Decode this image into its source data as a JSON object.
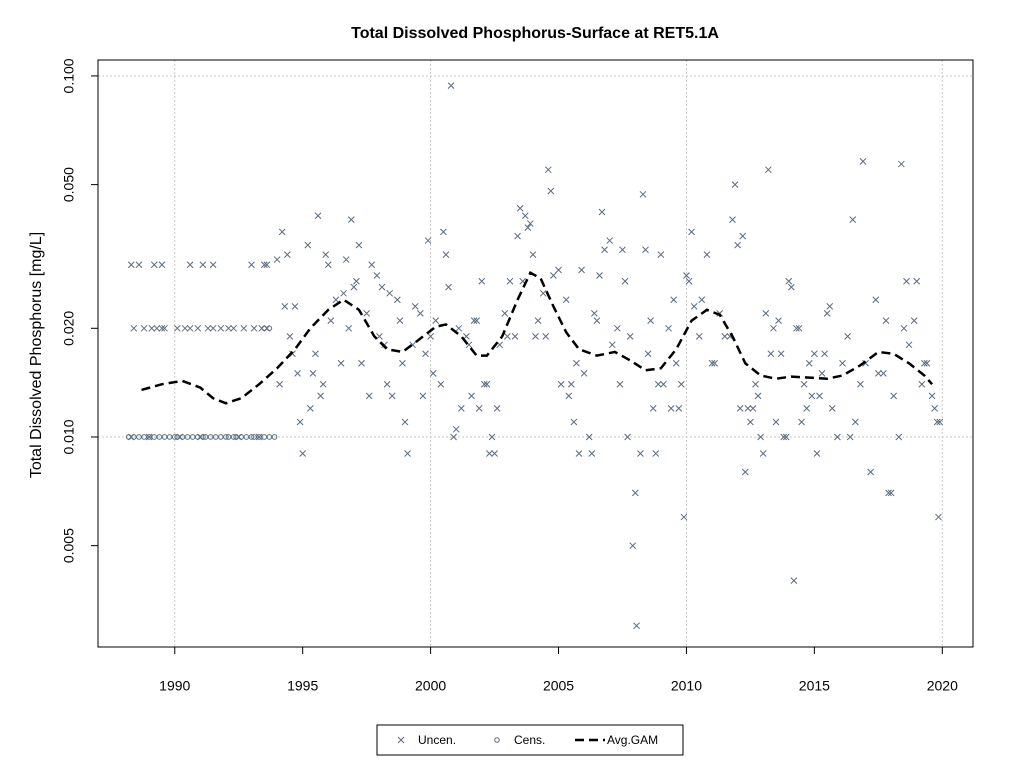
{
  "chart_data": {
    "type": "scatter",
    "title": "Total Dissolved Phosphorus-Surface at RET5.1A",
    "y_label": "Total Dissolved Phosphorus [mg/L]",
    "log_y": true,
    "xlim": [
      1987,
      2021.2
    ],
    "ylim": [
      0.00262,
      0.1107
    ],
    "xticks": [
      1990,
      1995,
      2000,
      2005,
      2010,
      2015,
      2020
    ],
    "yticks": [
      {
        "value": 0.1,
        "label": "0.100"
      },
      {
        "value": 0.05,
        "label": "0.050"
      },
      {
        "value": 0.02,
        "label": "0.020"
      },
      {
        "value": 0.01,
        "label": "0.010"
      },
      0.005
    ],
    "x_grid": [
      1990,
      2000,
      2010,
      2020
    ],
    "y_grid": [
      0.01,
      0.1
    ],
    "legend": "bottom",
    "series": [
      {
        "name": "Uncen.",
        "marker": "cross",
        "color": "#5b6b82",
        "x": [
          1988.3,
          1988.6,
          1989.2,
          1989.5,
          1990.6,
          1991.1,
          1991.5,
          1993.0,
          1993.5,
          1993.6,
          1988.4,
          1988.8,
          1989.1,
          1989.3,
          1989.5,
          1989.6,
          1990.1,
          1990.4,
          1990.6,
          1990.9,
          1991.3,
          1991.5,
          1991.8,
          1992.1,
          1992.3,
          1992.7,
          1993.1,
          1993.4,
          1993.6,
          1988.3,
          1989.0,
          1990.2,
          1991.0,
          1992.5,
          1993.3,
          1994.0,
          1994.1,
          1994.2,
          1994.3,
          1994.4,
          1994.5,
          1994.6,
          1994.7,
          1994.8,
          1994.9,
          1995.0,
          1995.2,
          1995.3,
          1995.4,
          1995.5,
          1995.6,
          1995.7,
          1995.8,
          1995.9,
          1996.0,
          1996.1,
          1996.3,
          1996.5,
          1996.6,
          1996.7,
          1996.8,
          1996.9,
          1997.0,
          1997.1,
          1997.2,
          1997.3,
          1997.5,
          1997.6,
          1997.7,
          1997.9,
          1998.0,
          1998.1,
          1998.2,
          1998.3,
          1998.4,
          1998.5,
          1998.7,
          1998.8,
          1998.9,
          1999.0,
          1999.1,
          1999.3,
          1999.4,
          1999.6,
          1999.7,
          1999.8,
          1999.9,
          2000.0,
          2000.1,
          2000.2,
          2000.4,
          2000.5,
          2000.6,
          2000.7,
          2000.8,
          2000.9,
          2001.0,
          2001.1,
          2001.2,
          2001.4,
          2001.5,
          2001.6,
          2001.7,
          2001.8,
          2001.9,
          2002.0,
          2002.1,
          2002.2,
          2002.3,
          2002.4,
          2002.5,
          2002.6,
          2002.7,
          2002.9,
          2003.0,
          2003.1,
          2003.3,
          2003.4,
          2003.5,
          2003.6,
          2003.7,
          2003.8,
          2003.9,
          2004.0,
          2004.1,
          2004.2,
          2004.4,
          2004.5,
          2004.6,
          2004.7,
          2004.8,
          2005.0,
          2005.1,
          2005.3,
          2005.4,
          2005.5,
          2005.6,
          2005.7,
          2005.8,
          2005.9,
          2006.0,
          2006.2,
          2006.3,
          2006.4,
          2006.5,
          2006.6,
          2006.7,
          2006.8,
          2007.0,
          2007.1,
          2007.3,
          2007.4,
          2007.5,
          2007.6,
          2007.7,
          2007.8,
          2007.9,
          2008.0,
          2008.05,
          2008.2,
          2008.3,
          2008.4,
          2008.5,
          2008.6,
          2008.7,
          2008.8,
          2008.9,
          2009.0,
          2009.1,
          2009.3,
          2009.4,
          2009.5,
          2009.6,
          2009.7,
          2009.8,
          2009.9,
          2010.0,
          2010.1,
          2010.2,
          2010.3,
          2010.5,
          2010.6,
          2010.8,
          2011.0,
          2011.1,
          2011.3,
          2011.5,
          2011.7,
          2011.8,
          2011.9,
          2012.0,
          2012.1,
          2012.2,
          2012.3,
          2012.4,
          2012.5,
          2012.6,
          2012.7,
          2012.8,
          2012.9,
          2013.0,
          2013.1,
          2013.2,
          2013.3,
          2013.4,
          2013.5,
          2013.6,
          2013.7,
          2013.8,
          2013.9,
          2014.0,
          2014.1,
          2014.2,
          2014.3,
          2014.4,
          2014.5,
          2014.6,
          2014.7,
          2014.8,
          2014.9,
          2015.0,
          2015.1,
          2015.2,
          2015.3,
          2015.4,
          2015.5,
          2015.6,
          2015.7,
          2015.9,
          2016.1,
          2016.3,
          2016.4,
          2016.5,
          2016.6,
          2016.8,
          2016.9,
          2017.0,
          2017.2,
          2017.4,
          2017.5,
          2017.7,
          2017.8,
          2017.9,
          2018.0,
          2018.1,
          2018.3,
          2018.4,
          2018.5,
          2018.6,
          2018.7,
          2018.9,
          2019.0,
          2019.2,
          2019.3,
          2019.4,
          2019.6,
          2019.7,
          2019.8,
          2019.85,
          2019.9
        ],
        "values": [
          0.03,
          0.03,
          0.03,
          0.03,
          0.03,
          0.03,
          0.03,
          0.03,
          0.03,
          0.03,
          0.02,
          0.02,
          0.02,
          0.02,
          0.02,
          0.02,
          0.02,
          0.02,
          0.02,
          0.02,
          0.02,
          0.02,
          0.02,
          0.02,
          0.02,
          0.02,
          0.02,
          0.02,
          0.02,
          0.01,
          0.01,
          0.01,
          0.01,
          0.01,
          0.01,
          0.031,
          0.014,
          0.037,
          0.023,
          0.032,
          0.019,
          0.017,
          0.023,
          0.015,
          0.011,
          0.009,
          0.034,
          0.012,
          0.015,
          0.017,
          0.041,
          0.013,
          0.014,
          0.032,
          0.03,
          0.021,
          0.024,
          0.016,
          0.025,
          0.031,
          0.02,
          0.04,
          0.026,
          0.027,
          0.034,
          0.016,
          0.022,
          0.013,
          0.03,
          0.028,
          0.019,
          0.026,
          0.018,
          0.014,
          0.025,
          0.013,
          0.024,
          0.021,
          0.016,
          0.011,
          0.009,
          0.018,
          0.023,
          0.022,
          0.013,
          0.017,
          0.035,
          0.019,
          0.015,
          0.021,
          0.014,
          0.037,
          0.032,
          0.026,
          0.094,
          0.01,
          0.0105,
          0.02,
          0.012,
          0.019,
          0.018,
          0.013,
          0.021,
          0.021,
          0.012,
          0.027,
          0.014,
          0.014,
          0.009,
          0.01,
          0.009,
          0.012,
          0.018,
          0.022,
          0.019,
          0.027,
          0.019,
          0.036,
          0.043,
          0.027,
          0.041,
          0.038,
          0.039,
          0.032,
          0.019,
          0.021,
          0.025,
          0.019,
          0.055,
          0.048,
          0.028,
          0.029,
          0.014,
          0.024,
          0.013,
          0.014,
          0.011,
          0.016,
          0.009,
          0.029,
          0.015,
          0.01,
          0.009,
          0.022,
          0.021,
          0.028,
          0.042,
          0.033,
          0.035,
          0.018,
          0.02,
          0.014,
          0.033,
          0.027,
          0.01,
          0.019,
          0.005,
          0.007,
          0.003,
          0.009,
          0.047,
          0.033,
          0.017,
          0.021,
          0.012,
          0.009,
          0.014,
          0.032,
          0.014,
          0.02,
          0.012,
          0.024,
          0.016,
          0.012,
          0.014,
          0.006,
          0.028,
          0.027,
          0.037,
          0.023,
          0.019,
          0.024,
          0.032,
          0.016,
          0.016,
          0.022,
          0.019,
          0.019,
          0.04,
          0.05,
          0.034,
          0.012,
          0.036,
          0.008,
          0.012,
          0.011,
          0.012,
          0.014,
          0.013,
          0.01,
          0.009,
          0.022,
          0.055,
          0.017,
          0.02,
          0.011,
          0.021,
          0.017,
          0.01,
          0.01,
          0.027,
          0.026,
          0.004,
          0.02,
          0.02,
          0.011,
          0.014,
          0.012,
          0.016,
          0.013,
          0.017,
          0.009,
          0.013,
          0.015,
          0.017,
          0.022,
          0.023,
          0.012,
          0.01,
          0.016,
          0.019,
          0.01,
          0.04,
          0.011,
          0.014,
          0.058,
          0.016,
          0.008,
          0.024,
          0.015,
          0.015,
          0.021,
          0.007,
          0.007,
          0.013,
          0.01,
          0.057,
          0.02,
          0.027,
          0.018,
          0.021,
          0.027,
          0.014,
          0.016,
          0.016,
          0.013,
          0.012,
          0.011,
          0.006,
          0.011
        ]
      },
      {
        "name": "Cens.",
        "marker": "circle",
        "color": "#5b6b82",
        "x": [
          1988.2,
          1988.4,
          1988.6,
          1988.8,
          1989.0,
          1989.2,
          1989.4,
          1989.6,
          1989.8,
          1990.0,
          1990.1,
          1990.3,
          1990.5,
          1990.7,
          1990.9,
          1991.1,
          1991.2,
          1991.4,
          1991.6,
          1991.8,
          1992.0,
          1992.1,
          1992.3,
          1992.4,
          1992.6,
          1992.8,
          1993.0,
          1993.1,
          1993.3,
          1993.5,
          1993.7,
          1993.9,
          1993.5,
          1993.7
        ],
        "values": [
          0.01,
          0.01,
          0.01,
          0.01,
          0.01,
          0.01,
          0.01,
          0.01,
          0.01,
          0.01,
          0.01,
          0.01,
          0.01,
          0.01,
          0.01,
          0.01,
          0.01,
          0.01,
          0.01,
          0.01,
          0.01,
          0.01,
          0.01,
          0.01,
          0.01,
          0.01,
          0.01,
          0.01,
          0.01,
          0.01,
          0.01,
          0.01,
          0.02,
          0.02
        ]
      },
      {
        "name": "Avg.GAM",
        "marker": "dashed-line",
        "color": "#000000",
        "x": [
          1988.7,
          1989.5,
          1990.3,
          1991.0,
          1991.5,
          1992.0,
          1992.6,
          1993.3,
          1994.0,
          1994.7,
          1995.3,
          1996.0,
          1996.6,
          1997.2,
          1997.8,
          1998.3,
          1998.9,
          1999.5,
          2000.2,
          2000.6,
          2001.2,
          2001.8,
          2002.2,
          2002.8,
          2003.4,
          2003.9,
          2004.3,
          2004.8,
          2005.3,
          2005.8,
          2006.5,
          2007.2,
          2007.8,
          2008.4,
          2009.0,
          2009.6,
          2010.2,
          2010.8,
          2011.3,
          2011.8,
          2012.3,
          2012.9,
          2013.5,
          2014.1,
          2014.8,
          2015.5,
          2016.1,
          2016.8,
          2017.5,
          2018.1,
          2018.7,
          2019.3,
          2019.6
        ],
        "values": [
          0.0135,
          0.014,
          0.0143,
          0.0137,
          0.0128,
          0.0124,
          0.0128,
          0.014,
          0.0155,
          0.0175,
          0.02,
          0.0225,
          0.024,
          0.0225,
          0.019,
          0.0175,
          0.0172,
          0.0185,
          0.0202,
          0.0205,
          0.019,
          0.0168,
          0.0168,
          0.019,
          0.024,
          0.0285,
          0.0275,
          0.023,
          0.0195,
          0.0175,
          0.0168,
          0.0172,
          0.0163,
          0.0153,
          0.0155,
          0.0175,
          0.021,
          0.0225,
          0.0218,
          0.019,
          0.016,
          0.0148,
          0.0145,
          0.0147,
          0.0146,
          0.0145,
          0.0148,
          0.0158,
          0.0172,
          0.017,
          0.016,
          0.0148,
          0.014
        ]
      }
    ]
  }
}
